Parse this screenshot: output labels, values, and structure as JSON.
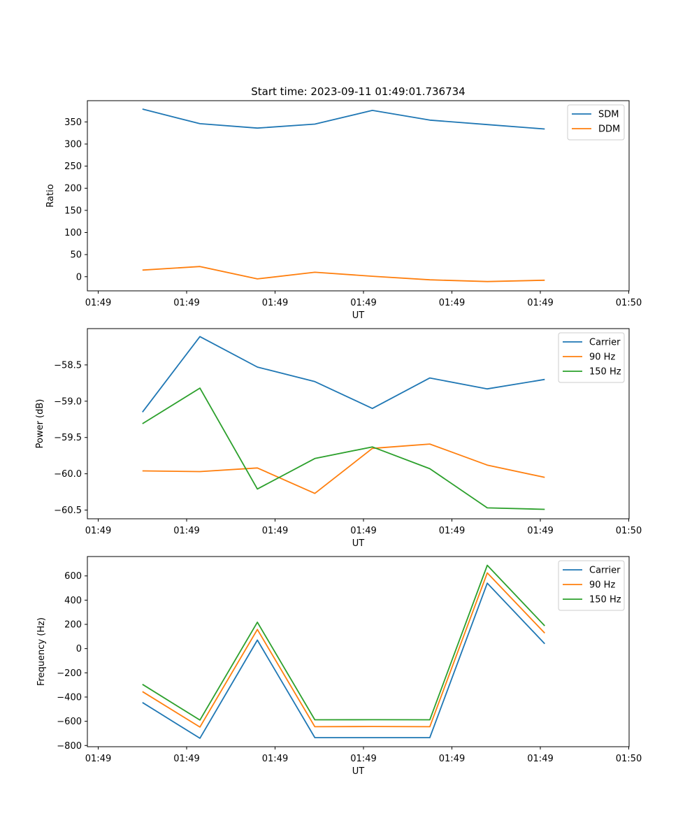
{
  "figure_title": "Start time: 2023-09-11 01:49:01.736734",
  "chart_data": [
    {
      "type": "line",
      "title": "Start time: 2023-09-11 01:49:01.736734",
      "xlabel": "UT",
      "ylabel": "Ratio",
      "x_tick_labels": [
        "01:49",
        "01:49",
        "01:49",
        "01:49",
        "01:49",
        "01:49",
        "01:50"
      ],
      "y_ticks": [
        0,
        50,
        100,
        150,
        200,
        250,
        300,
        350
      ],
      "y_tick_labels": [
        "0",
        "50",
        "100",
        "150",
        "200",
        "250",
        "300",
        "350"
      ],
      "xlim": [
        0,
        6.12
      ],
      "ylim": [
        -32,
        398
      ],
      "legend_position": "top-right",
      "x": [
        0.5,
        1.15,
        1.8,
        2.45,
        3.1,
        3.75,
        4.4,
        5.05
      ],
      "series": [
        {
          "name": "SDM",
          "color": "#1f77b4",
          "values": [
            379,
            346,
            336,
            345,
            376,
            354,
            344,
            334
          ]
        },
        {
          "name": "DDM",
          "color": "#ff7f0e",
          "values": [
            15,
            23,
            -5,
            10,
            1,
            -7,
            -11,
            -8
          ]
        }
      ]
    },
    {
      "type": "line",
      "title": "",
      "xlabel": "UT",
      "ylabel": "Power (dB)",
      "x_tick_labels": [
        "01:49",
        "01:49",
        "01:49",
        "01:49",
        "01:49",
        "01:49",
        "01:50"
      ],
      "y_ticks": [
        -60.5,
        -60.0,
        -59.5,
        -59.0,
        -58.5
      ],
      "y_tick_labels": [
        "−60.5",
        "−60.0",
        "−59.5",
        "−59.0",
        "−58.5"
      ],
      "xlim": [
        0,
        6.12
      ],
      "ylim": [
        -60.62,
        -58.0
      ],
      "legend_position": "top-right",
      "x": [
        0.5,
        1.15,
        1.8,
        2.45,
        3.1,
        3.75,
        4.4,
        5.05
      ],
      "series": [
        {
          "name": "Carrier",
          "color": "#1f77b4",
          "values": [
            -59.15,
            -58.11,
            -58.53,
            -58.73,
            -59.1,
            -58.68,
            -58.83,
            -58.7
          ]
        },
        {
          "name": "90 Hz",
          "color": "#ff7f0e",
          "values": [
            -59.96,
            -59.97,
            -59.92,
            -60.27,
            -59.65,
            -59.59,
            -59.88,
            -60.05
          ]
        },
        {
          "name": "150 Hz",
          "color": "#2ca02c",
          "values": [
            -59.31,
            -58.82,
            -60.21,
            -59.79,
            -59.63,
            -59.93,
            -60.47,
            -60.49
          ]
        }
      ]
    },
    {
      "type": "line",
      "title": "",
      "xlabel": "UT",
      "ylabel": "Frequency (Hz)",
      "x_tick_labels": [
        "01:49",
        "01:49",
        "01:49",
        "01:49",
        "01:49",
        "01:49",
        "01:50"
      ],
      "y_ticks": [
        -800,
        -600,
        -400,
        -200,
        0,
        200,
        400,
        600
      ],
      "y_tick_labels": [
        "−800",
        "−600",
        "−400",
        "−200",
        "0",
        "200",
        "400",
        "600"
      ],
      "xlim": [
        0,
        6.12
      ],
      "ylim": [
        -810,
        760
      ],
      "legend_position": "top-right",
      "x": [
        0.5,
        1.15,
        1.8,
        2.45,
        3.1,
        3.75,
        4.4,
        5.05
      ],
      "series": [
        {
          "name": "Carrier",
          "color": "#1f77b4",
          "values": [
            -445,
            -740,
            70,
            -735,
            -735,
            -735,
            540,
            40
          ]
        },
        {
          "name": "90 Hz",
          "color": "#ff7f0e",
          "values": [
            -355,
            -648,
            158,
            -645,
            -643,
            -645,
            625,
            128
          ]
        },
        {
          "name": "150 Hz",
          "color": "#2ca02c",
          "values": [
            -295,
            -590,
            218,
            -588,
            -587,
            -588,
            688,
            188
          ]
        }
      ]
    }
  ]
}
